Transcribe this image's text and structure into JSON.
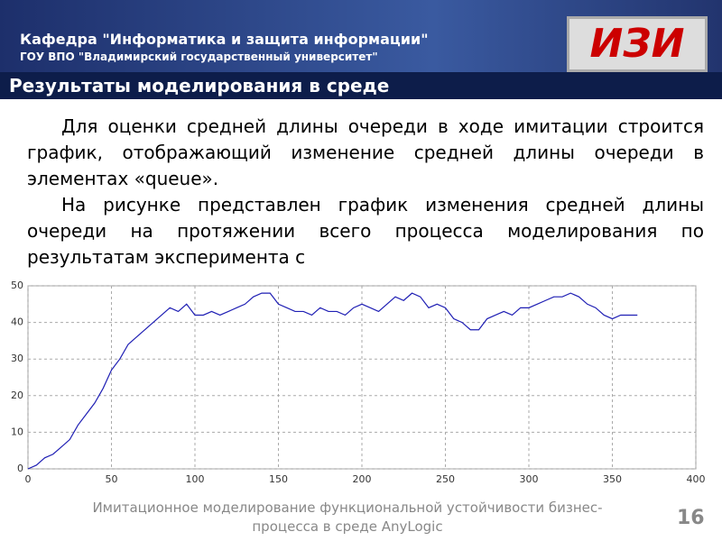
{
  "header": {
    "department": "Кафедра \"Информатика и защита информации\"",
    "university": "ГОУ ВПО \"Владимирский государственный университет\"",
    "logo": "ИЗИ"
  },
  "slide_title": "Результаты моделирования в среде",
  "paragraphs": [
    "Для оценки средней длины очереди в ходе имитации строится график, отображающий изменение средней длины очереди в элементах «queue».",
    "На рисунке  представлен график изменения средней длины очереди на протяжении всего процесса моделирования по результатам эксперимента с"
  ],
  "chart_data": {
    "type": "line",
    "x": [
      0,
      5,
      10,
      15,
      20,
      25,
      30,
      35,
      40,
      45,
      50,
      55,
      60,
      65,
      70,
      75,
      80,
      85,
      90,
      95,
      100,
      105,
      110,
      115,
      120,
      125,
      130,
      135,
      140,
      145,
      150,
      155,
      160,
      165,
      170,
      175,
      180,
      185,
      190,
      195,
      200,
      205,
      210,
      215,
      220,
      225,
      230,
      235,
      240,
      245,
      250,
      255,
      260,
      265,
      270,
      275,
      280,
      285,
      290,
      295,
      300,
      305,
      310,
      315,
      320,
      325,
      330,
      335,
      340,
      345,
      350,
      355,
      360,
      365
    ],
    "series": [
      {
        "color": "#1f1fb4",
        "values": [
          0,
          1,
          3,
          4,
          6,
          8,
          12,
          15,
          18,
          22,
          27,
          30,
          34,
          36,
          38,
          40,
          42,
          44,
          43,
          45,
          42,
          42,
          43,
          42,
          43,
          44,
          45,
          47,
          48,
          48,
          45,
          44,
          43,
          43,
          42,
          44,
          43,
          43,
          42,
          44,
          45,
          44,
          43,
          45,
          47,
          46,
          48,
          47,
          44,
          45,
          44,
          41,
          40,
          38,
          38,
          41,
          42,
          43,
          42,
          44,
          44,
          45,
          46,
          47,
          47,
          48,
          47,
          45,
          44,
          42,
          41,
          42,
          42,
          42
        ]
      }
    ],
    "xlim": [
      0,
      400
    ],
    "xticks": [
      0,
      50,
      100,
      150,
      200,
      250,
      300,
      350,
      400
    ],
    "ylim": [
      0,
      50
    ],
    "yticks": [
      0,
      10,
      20,
      30,
      40,
      50
    ],
    "grid": true
  },
  "footer": {
    "text_line1": "Имитационное моделирование функциональной устойчивости бизнес-",
    "text_line2": "процесса в среде AnyLogic",
    "page": "16"
  }
}
